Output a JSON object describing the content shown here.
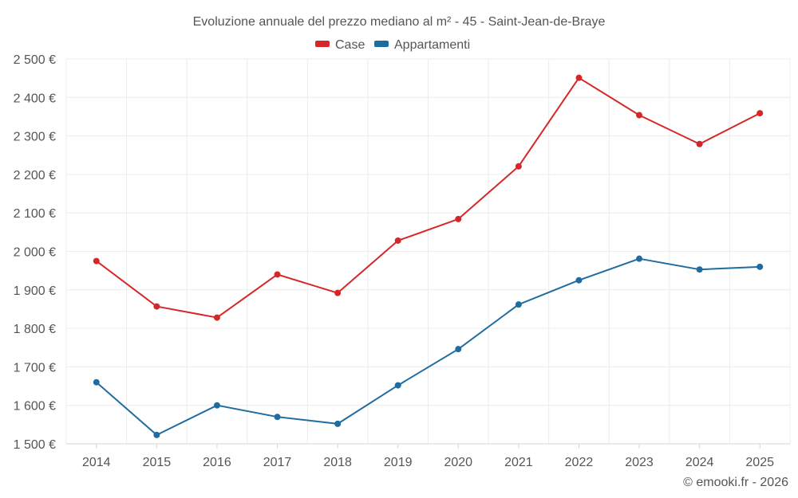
{
  "chart_data": {
    "type": "line",
    "title": "Evoluzione annuale del prezzo mediano al m² - 45 - Saint-Jean-de-Braye",
    "x": [
      "2014",
      "2015",
      "2016",
      "2017",
      "2018",
      "2019",
      "2020",
      "2021",
      "2022",
      "2023",
      "2024",
      "2025"
    ],
    "series": [
      {
        "name": "Case",
        "color": "#d62728",
        "values": [
          1975,
          1857,
          1828,
          1940,
          1892,
          2028,
          2084,
          2221,
          2451,
          2354,
          2279,
          2359
        ]
      },
      {
        "name": "Appartamenti",
        "color": "#1f6ca0",
        "values": [
          1660,
          1523,
          1600,
          1570,
          1552,
          1652,
          1746,
          1862,
          1925,
          1981,
          1953,
          1960
        ]
      }
    ],
    "ylim": [
      1500,
      2500
    ],
    "yticks": [
      1500,
      1600,
      1700,
      1800,
      1900,
      2000,
      2100,
      2200,
      2300,
      2400,
      2500
    ],
    "ytick_labels": [
      "1 500 €",
      "1 600 €",
      "1 700 €",
      "1 800 €",
      "1 900 €",
      "2 000 €",
      "2 100 €",
      "2 200 €",
      "2 300 €",
      "2 400 €",
      "2 500 €"
    ],
    "xlabel": "",
    "ylabel": "",
    "grid": true,
    "legend_position": "top-center"
  },
  "credit": "© emooki.fr - 2026"
}
